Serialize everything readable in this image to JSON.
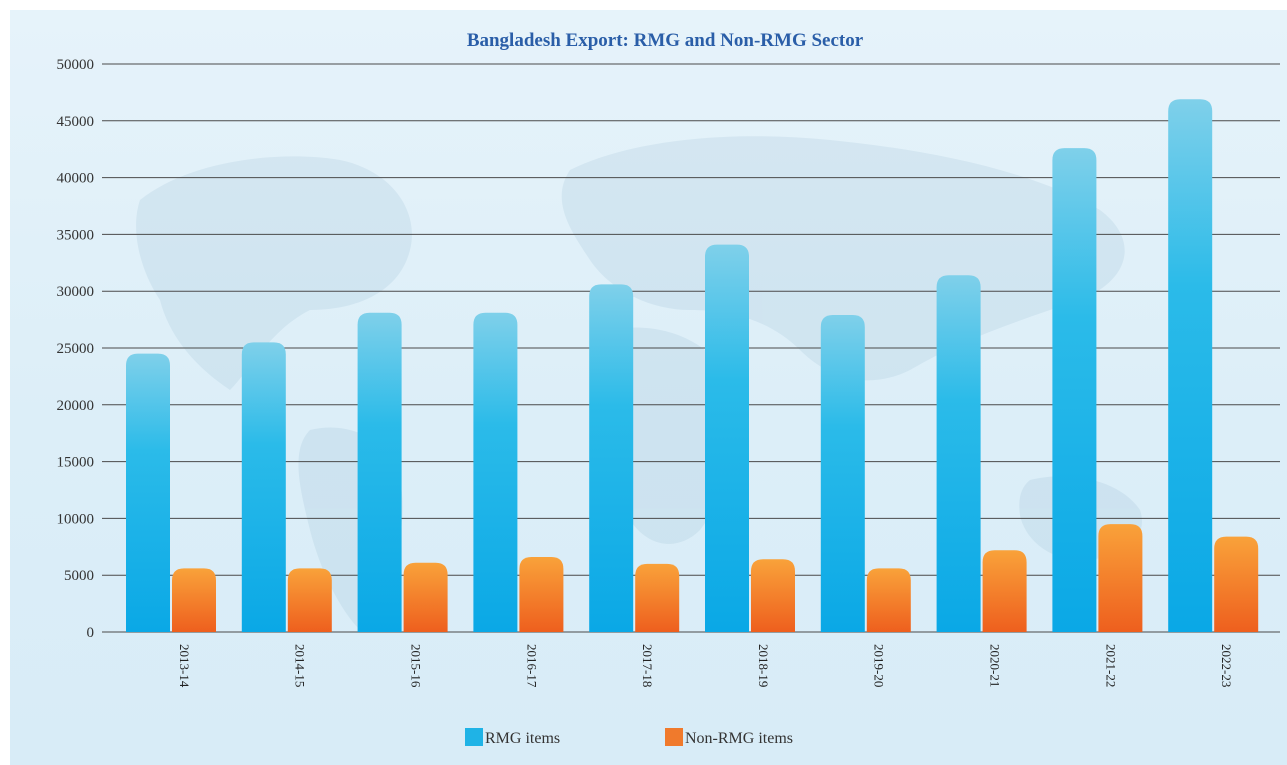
{
  "chart_data": {
    "type": "bar",
    "title": "Bangladesh Export: RMG and Non-RMG Sector",
    "categories": [
      "2013-14",
      "2014-15",
      "2015-16",
      "2016-17",
      "2017-18",
      "2018-19",
      "2019-20",
      "2020-21",
      "2021-22",
      "2022-23"
    ],
    "series": [
      {
        "name": "RMG items",
        "color": "#1fb3e6",
        "values": [
          24500,
          25500,
          28100,
          28100,
          30600,
          34100,
          27900,
          31400,
          42600,
          46900
        ]
      },
      {
        "name": "Non-RMG items",
        "color": "#f07a2c",
        "values": [
          5600,
          5600,
          6100,
          6600,
          6000,
          6400,
          5600,
          7200,
          9500,
          8400
        ]
      }
    ],
    "ylim": [
      0,
      50000
    ],
    "yticks": [
      0,
      5000,
      10000,
      15000,
      20000,
      25000,
      30000,
      35000,
      40000,
      45000,
      50000
    ],
    "grid": true,
    "legend_position": "bottom-center"
  }
}
